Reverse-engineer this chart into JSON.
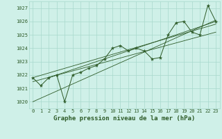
{
  "x": [
    0,
    1,
    2,
    3,
    4,
    5,
    6,
    7,
    8,
    9,
    10,
    11,
    12,
    13,
    14,
    15,
    16,
    17,
    18,
    19,
    20,
    21,
    22,
    23
  ],
  "y": [
    1021.8,
    1021.2,
    1021.8,
    1022.0,
    1020.0,
    1022.0,
    1022.2,
    1022.5,
    1022.7,
    1023.2,
    1024.0,
    1024.2,
    1023.8,
    1024.0,
    1023.8,
    1023.2,
    1023.3,
    1025.0,
    1025.9,
    1026.0,
    1025.2,
    1025.0,
    1027.2,
    1026.0
  ],
  "trend1_x": [
    0,
    23
  ],
  "trend1_y": [
    1020.0,
    1026.1
  ],
  "trend2_x": [
    0,
    23
  ],
  "trend2_y": [
    1021.8,
    1025.8
  ],
  "trend3_x": [
    2,
    23
  ],
  "trend3_y": [
    1021.8,
    1026.0
  ],
  "trend4_x": [
    0,
    23
  ],
  "trend4_y": [
    1021.5,
    1025.2
  ],
  "ylim": [
    1019.5,
    1027.5
  ],
  "xlim": [
    -0.5,
    23.5
  ],
  "yticks": [
    1020,
    1021,
    1022,
    1023,
    1024,
    1025,
    1026,
    1027
  ],
  "xticks": [
    0,
    1,
    2,
    3,
    4,
    5,
    6,
    7,
    8,
    9,
    10,
    11,
    12,
    13,
    14,
    15,
    16,
    17,
    18,
    19,
    20,
    21,
    22,
    23
  ],
  "xtick_labels": [
    "0",
    "1",
    "2",
    "3",
    "4",
    "5",
    "6",
    "7",
    "8",
    "9",
    "10",
    "11",
    "12",
    "13",
    "14",
    "15",
    "16",
    "17",
    "18",
    "19",
    "20",
    "21",
    "22",
    "23"
  ],
  "bg_color": "#cff0e8",
  "grid_color": "#a8d8cc",
  "line_color": "#2d5a27",
  "xlabel": "Graphe pression niveau de la mer (hPa)",
  "tick_fontsize": 5.0,
  "label_fontsize": 6.5
}
